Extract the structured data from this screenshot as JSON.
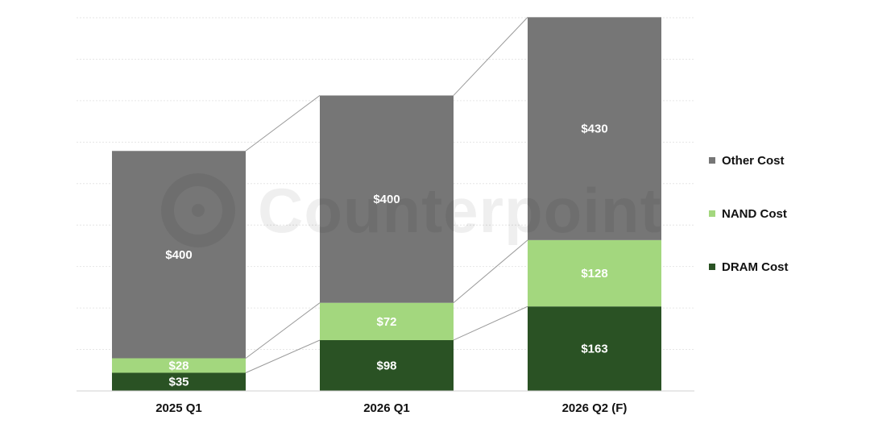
{
  "chart_data": {
    "type": "bar",
    "stacked": true,
    "categories": [
      "2025 Q1",
      "2026 Q1",
      "2026 Q2 (F)"
    ],
    "series": [
      {
        "name": "DRAM Cost",
        "values": [
          35,
          98,
          163
        ],
        "color": "#2a5224"
      },
      {
        "name": "NAND Cost",
        "values": [
          28,
          72,
          128
        ],
        "color": "#a3d77e"
      },
      {
        "name": "Other Cost",
        "values": [
          400,
          400,
          430
        ],
        "color": "#767676"
      }
    ],
    "data_labels": [
      [
        "$35",
        "$98",
        "$163"
      ],
      [
        "$28",
        "$72",
        "$128"
      ],
      [
        "$400",
        "$400",
        "$430"
      ]
    ],
    "ylim": [
      0,
      720
    ],
    "grid": true,
    "legend_position": "right",
    "connector_lines": true
  },
  "legend": {
    "items": [
      {
        "label": "Other Cost",
        "color": "#767676"
      },
      {
        "label": "NAND Cost",
        "color": "#a3d77e"
      },
      {
        "label": "DRAM Cost",
        "color": "#2a5224"
      }
    ]
  },
  "watermark": {
    "text": "Counterpoint"
  }
}
